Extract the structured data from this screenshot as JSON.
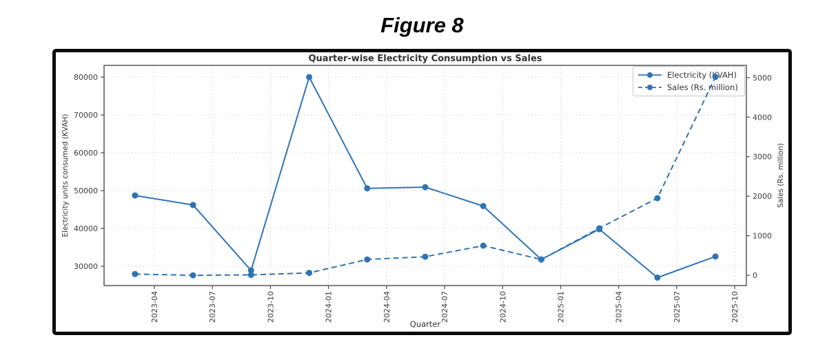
{
  "figure": {
    "caption": "Figure 8"
  },
  "chart_data": {
    "type": "line",
    "title": "Quarter-wise Electricity Consumption vs Sales",
    "xlabel": "Quarter",
    "ylabel_left": "Electricity units consumed (KVAH)",
    "ylabel_right": "Sales (Rs. million)",
    "x_quarters": [
      "2023-03",
      "2023-06",
      "2023-09",
      "2023-12",
      "2024-03",
      "2024-06",
      "2024-09",
      "2024-12",
      "2025-03",
      "2025-06",
      "2025-09"
    ],
    "x_tick_labels": [
      "2023-04",
      "2023-07",
      "2023-10",
      "2024-01",
      "2024-04",
      "2024-07",
      "2024-10",
      "2025-01",
      "2025-04",
      "2025-07",
      "2025-10"
    ],
    "series": [
      {
        "name": "Electricity (KVAH)",
        "axis": "left",
        "style": "solid",
        "color": "#2e74b5",
        "values": [
          48700,
          46200,
          28900,
          80000,
          50600,
          50900,
          45900,
          31800,
          39800,
          27000,
          32600
        ]
      },
      {
        "name": "Sales (Rs. million)",
        "axis": "right",
        "style": "dashed",
        "color": "#2e74b5",
        "values": [
          30,
          0,
          10,
          60,
          400,
          470,
          750,
          400,
          1190,
          1950,
          5020
        ]
      }
    ],
    "yticks_left": [
      30000,
      40000,
      50000,
      60000,
      70000,
      80000
    ],
    "ylim_left": [
      24900,
      83100
    ],
    "yticks_right": [
      0,
      1000,
      2000,
      3000,
      4000,
      5000
    ],
    "ylim_right": [
      -260,
      5310
    ],
    "xlim_months_from_2023_01": [
      0.4,
      33.6
    ],
    "grid": true,
    "legend_position": "upper right"
  }
}
